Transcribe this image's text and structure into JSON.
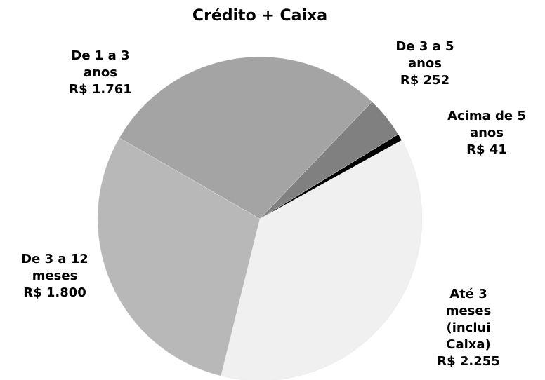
{
  "chart_data": {
    "type": "pie",
    "title": "Crédito + Caixa",
    "categories": [
      "Até 3 meses (inclui Caixa)",
      "De 3 a 12 meses",
      "De 1 a 3 anos",
      "De 3 a 5 anos",
      "Acima de 5 anos"
    ],
    "values": [
      2255,
      1800,
      1761,
      252,
      41
    ],
    "value_labels": [
      "R$ 2.255",
      "R$ 1.800",
      "R$ 1.761",
      "R$ 252",
      "R$ 41"
    ],
    "colors": [
      "#f0f0f0",
      "#b8b8b8",
      "#a4a4a4",
      "#808080",
      "#000000"
    ]
  }
}
